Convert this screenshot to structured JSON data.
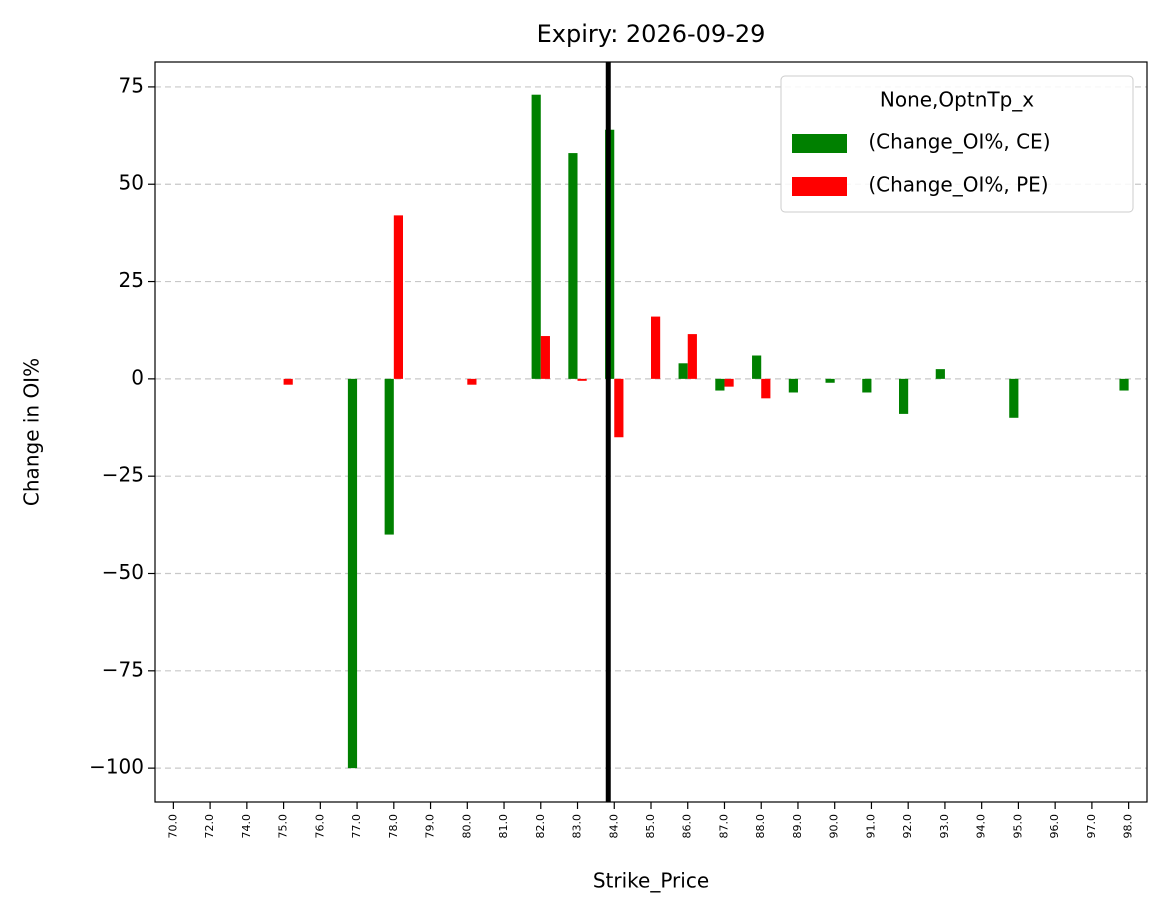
{
  "chart_data": {
    "type": "bar",
    "title": "Expiry: 2026-09-29",
    "x_label": "Strike_Price",
    "y_label": "Change in OI%",
    "legend_title": "None,OptnTp_x",
    "legend_position": "upper right",
    "categories": [
      "70.0",
      "72.0",
      "74.0",
      "75.0",
      "76.0",
      "77.0",
      "78.0",
      "79.0",
      "80.0",
      "81.0",
      "82.0",
      "83.0",
      "84.0",
      "85.0",
      "86.0",
      "87.0",
      "88.0",
      "89.0",
      "90.0",
      "91.0",
      "92.0",
      "93.0",
      "94.0",
      "95.0",
      "96.0",
      "97.0",
      "98.0"
    ],
    "series": [
      {
        "name": " (Change_OI%, CE)",
        "color": "#008000",
        "values": [
          null,
          null,
          null,
          null,
          null,
          -100,
          -40,
          null,
          null,
          null,
          73,
          58,
          64,
          null,
          4,
          -3,
          6,
          -3.5,
          -1,
          -3.5,
          -9,
          2.5,
          null,
          -10,
          null,
          null,
          -3
        ]
      },
      {
        "name": " (Change_OI%, PE)",
        "color": "#ff0000",
        "values": [
          null,
          null,
          null,
          -1.5,
          null,
          null,
          42,
          null,
          -1.5,
          null,
          11,
          -0.5,
          -15,
          16,
          11.5,
          -2,
          -5,
          null,
          null,
          null,
          null,
          null,
          null,
          null,
          null,
          null,
          null
        ]
      }
    ],
    "vline_at": "84.0",
    "ylim": [
      -108.7,
      81.4
    ],
    "yticks": [
      {
        "value": -100,
        "label": "−100"
      },
      {
        "value": -75,
        "label": "−75"
      },
      {
        "value": -50,
        "label": "−50"
      },
      {
        "value": -25,
        "label": "−25"
      },
      0,
      25,
      50,
      75
    ],
    "grid": true
  }
}
